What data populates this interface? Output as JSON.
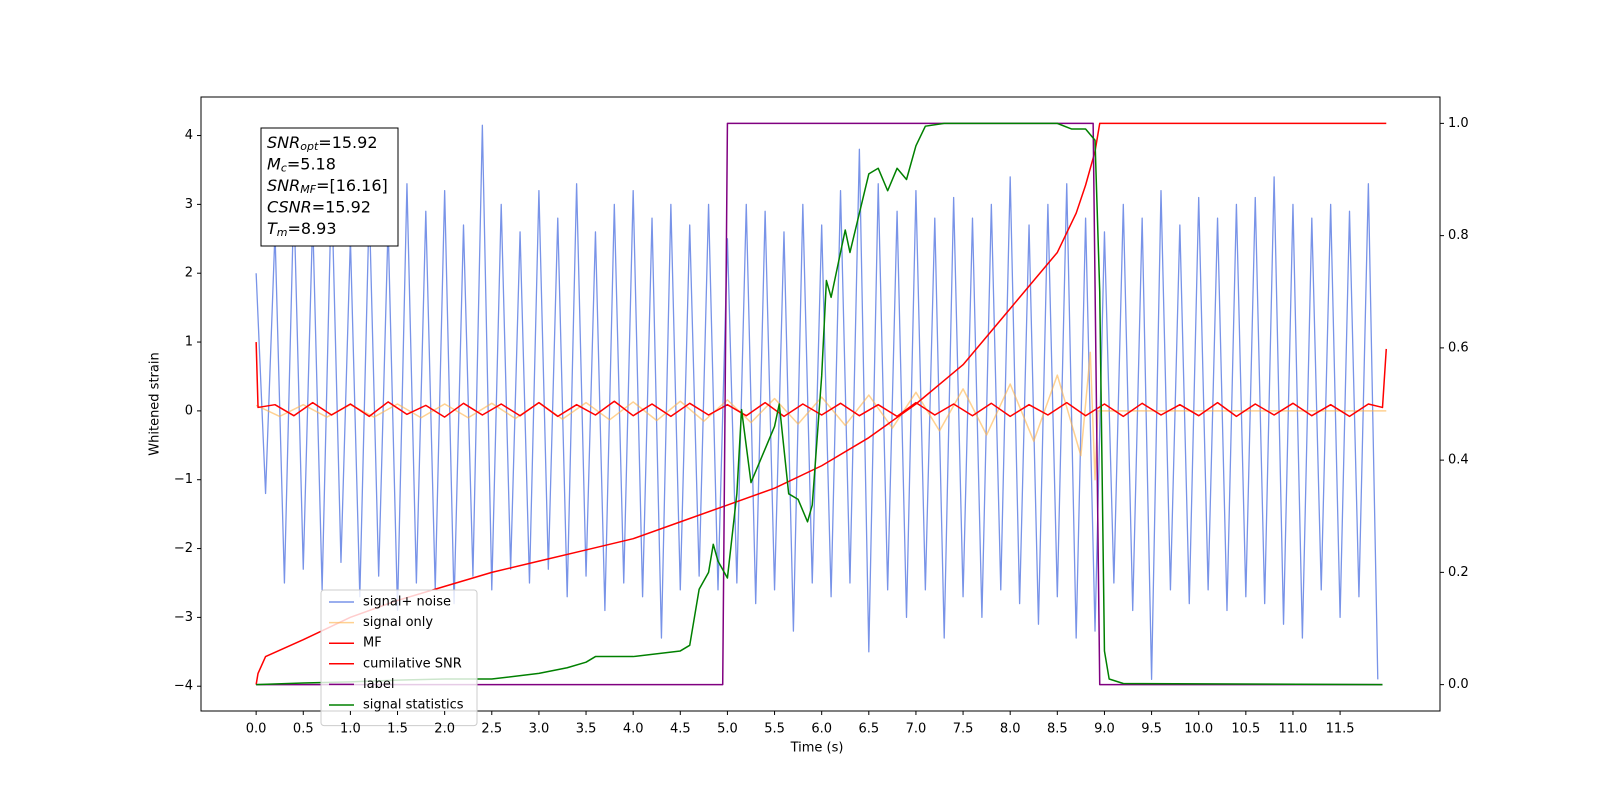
{
  "chart_data": {
    "type": "line",
    "xlabel": "Time (s)",
    "ylabel": "Whitened strain",
    "xlim": [
      -0.585,
      12.56
    ],
    "ylim": [
      -4.36,
      4.56
    ],
    "y2lim": [
      -0.047,
      1.047
    ],
    "xticks": [
      {
        "value": 0,
        "label": "0.0"
      },
      0.5,
      {
        "value": 1,
        "label": "1.0"
      },
      1.5,
      {
        "value": 2,
        "label": "2.0"
      },
      2.5,
      {
        "value": 3,
        "label": "3.0"
      },
      3.5,
      {
        "value": 4,
        "label": "4.0"
      },
      4.5,
      {
        "value": 5,
        "label": "5.0"
      },
      5.5,
      {
        "value": 6,
        "label": "6.0"
      },
      6.5,
      {
        "value": 7,
        "label": "7.0"
      },
      7.5,
      {
        "value": 8,
        "label": "8.0"
      },
      8.5,
      {
        "value": 9,
        "label": "9.0"
      },
      9.5,
      {
        "value": 10,
        "label": "10.0"
      },
      10.5,
      {
        "value": 11,
        "label": "11.0"
      },
      11.5
    ],
    "yticks": [
      {
        "value": -4,
        "label": "−4"
      },
      {
        "value": -3,
        "label": "−3"
      },
      {
        "value": -2,
        "label": "−2"
      },
      {
        "value": -1,
        "label": "−1"
      },
      0,
      1,
      2,
      3,
      4
    ],
    "y2ticks": [
      {
        "value": 0,
        "label": "0.0"
      },
      0.2,
      0.4,
      0.6,
      0.8,
      {
        "value": 1,
        "label": "1.0"
      }
    ],
    "grid": false,
    "legend": "lower left",
    "annotations": [
      {
        "text": "SNR",
        "sub": "opt",
        "value": "=15.92"
      },
      {
        "text": "M",
        "sub": "c",
        "value": "=5.18"
      },
      {
        "text": "SNR",
        "sub": "MF",
        "value": "=[16.16]"
      },
      {
        "text": "CSNR",
        "value": "=15.92"
      },
      {
        "text": "T",
        "sub": "m",
        "value": "=8.93"
      }
    ],
    "series": [
      {
        "name": "signal+ noise",
        "color": "#7893e8",
        "width": 1.3,
        "x": [
          0.0,
          0.1,
          0.2,
          0.3,
          0.4,
          0.5,
          0.6,
          0.7,
          0.8,
          0.9,
          1.0,
          1.1,
          1.2,
          1.3,
          1.4,
          1.5,
          1.6,
          1.7,
          1.8,
          1.9,
          2.0,
          2.1,
          2.2,
          2.3,
          2.4,
          2.5,
          2.6,
          2.7,
          2.8,
          2.9,
          3.0,
          3.1,
          3.2,
          3.3,
          3.4,
          3.5,
          3.6,
          3.7,
          3.8,
          3.9,
          4.0,
          4.1,
          4.2,
          4.3,
          4.4,
          4.5,
          4.6,
          4.7,
          4.8,
          4.9,
          5.0,
          5.1,
          5.2,
          5.3,
          5.4,
          5.5,
          5.6,
          5.7,
          5.8,
          5.9,
          6.0,
          6.1,
          6.2,
          6.3,
          6.4,
          6.5,
          6.6,
          6.7,
          6.8,
          6.9,
          7.0,
          7.1,
          7.2,
          7.3,
          7.4,
          7.5,
          7.6,
          7.7,
          7.8,
          7.9,
          8.0,
          8.1,
          8.2,
          8.3,
          8.4,
          8.5,
          8.6,
          8.7,
          8.8,
          8.9,
          9.0,
          9.1,
          9.2,
          9.3,
          9.4,
          9.5,
          9.6,
          9.7,
          9.8,
          9.9,
          10.0,
          10.1,
          10.2,
          10.3,
          10.4,
          10.5,
          10.6,
          10.7,
          10.8,
          10.9,
          11.0,
          11.1,
          11.2,
          11.3,
          11.4,
          11.5,
          11.6,
          11.7,
          11.8,
          11.9
        ],
        "values": [
          2.0,
          -1.2,
          2.6,
          -2.5,
          3.1,
          -2.3,
          2.8,
          -2.6,
          3.3,
          -2.2,
          2.5,
          -2.7,
          3.0,
          -2.4,
          2.7,
          -2.9,
          3.3,
          -2.5,
          2.9,
          -2.6,
          3.2,
          -2.8,
          2.7,
          -2.4,
          4.15,
          -2.6,
          3.0,
          -2.3,
          2.6,
          -2.5,
          3.2,
          -2.3,
          2.8,
          -2.7,
          3.3,
          -2.4,
          2.6,
          -2.9,
          3.0,
          -2.5,
          3.2,
          -2.7,
          2.8,
          -3.3,
          3.0,
          -2.6,
          2.7,
          -2.4,
          3.0,
          -2.6,
          2.5,
          -2.5,
          3.0,
          -2.8,
          2.9,
          -2.6,
          2.6,
          -3.2,
          3.0,
          -2.5,
          2.7,
          -2.7,
          3.2,
          -2.5,
          3.8,
          -3.5,
          3.3,
          -2.6,
          2.9,
          -3.0,
          3.2,
          -2.6,
          2.8,
          -3.3,
          3.1,
          -2.7,
          2.8,
          -3.0,
          3.0,
          -2.6,
          3.4,
          -2.8,
          2.7,
          -3.1,
          3.0,
          -2.7,
          3.3,
          -3.3,
          2.8,
          -3.2,
          2.6,
          -2.5,
          3.0,
          -2.9,
          2.8,
          -3.9,
          3.2,
          -2.6,
          2.7,
          -2.8,
          3.1,
          -2.6,
          2.8,
          -2.9,
          3.0,
          -2.7,
          3.1,
          -2.8,
          3.4,
          -3.1,
          3.0,
          -3.3,
          2.8,
          -2.6,
          3.0,
          -3.0,
          2.9,
          -2.7,
          3.3,
          -3.9
        ]
      },
      {
        "name": "signal only",
        "color": "#ffb347",
        "alpha": 0.6,
        "width": 1.5,
        "x": [
          0,
          0.25,
          0.5,
          0.75,
          1,
          1.25,
          1.5,
          1.75,
          2,
          2.25,
          2.5,
          2.75,
          3,
          3.25,
          3.5,
          3.75,
          4,
          4.25,
          4.5,
          4.75,
          5,
          5.25,
          5.5,
          5.75,
          6,
          6.25,
          6.5,
          6.75,
          7,
          7.25,
          7.5,
          7.75,
          8,
          8.25,
          8.5,
          8.75,
          8.85,
          8.9,
          8.93,
          11.99
        ],
        "values": [
          0.08,
          -0.08,
          0.09,
          -0.09,
          0.09,
          -0.09,
          0.1,
          -0.1,
          0.1,
          -0.1,
          0.11,
          -0.11,
          0.12,
          -0.12,
          0.12,
          -0.13,
          0.13,
          -0.14,
          0.14,
          -0.15,
          0.16,
          -0.17,
          0.18,
          -0.19,
          0.2,
          -0.21,
          0.23,
          -0.25,
          0.27,
          -0.29,
          0.32,
          -0.35,
          0.39,
          -0.44,
          0.52,
          -0.65,
          0.85,
          -1.0,
          0.0,
          0.0
        ]
      },
      {
        "name": "MF",
        "color": "#ff0000",
        "width": 1.5,
        "x": [
          0,
          0.02,
          0.2,
          0.4,
          0.6,
          0.8,
          1.0,
          1.2,
          1.4,
          1.6,
          1.8,
          2.0,
          2.2,
          2.4,
          2.6,
          2.8,
          3.0,
          3.2,
          3.4,
          3.6,
          3.8,
          4.0,
          4.2,
          4.4,
          4.6,
          4.8,
          5.0,
          5.2,
          5.4,
          5.6,
          5.8,
          6.0,
          6.2,
          6.4,
          6.6,
          6.8,
          7.0,
          7.2,
          7.4,
          7.6,
          7.8,
          8.0,
          8.2,
          8.4,
          8.6,
          8.8,
          9.0,
          9.2,
          9.4,
          9.6,
          9.8,
          10.0,
          10.2,
          10.4,
          10.6,
          10.8,
          11.0,
          11.2,
          11.4,
          11.6,
          11.8,
          11.95,
          11.99
        ],
        "values": [
          1.0,
          0.05,
          0.09,
          -0.07,
          0.12,
          -0.06,
          0.1,
          -0.08,
          0.13,
          -0.05,
          0.08,
          -0.09,
          0.11,
          -0.06,
          0.1,
          -0.07,
          0.12,
          -0.08,
          0.09,
          -0.06,
          0.14,
          -0.07,
          0.1,
          -0.08,
          0.11,
          -0.06,
          0.09,
          -0.07,
          0.12,
          -0.08,
          0.1,
          -0.06,
          0.11,
          -0.07,
          0.09,
          -0.08,
          0.12,
          -0.06,
          0.1,
          -0.07,
          0.11,
          -0.08,
          0.09,
          -0.06,
          0.12,
          -0.07,
          0.1,
          -0.08,
          0.11,
          -0.06,
          0.09,
          -0.07,
          0.12,
          -0.08,
          0.1,
          -0.06,
          0.11,
          -0.07,
          0.09,
          -0.08,
          0.1,
          0.05,
          0.9
        ]
      },
      {
        "name": "cumilative SNR",
        "color": "#ff0000",
        "width": 1.5,
        "axis": "y2",
        "x": [
          0,
          0.02,
          0.1,
          0.5,
          1,
          1.5,
          2,
          2.5,
          3,
          3.5,
          4,
          4.5,
          5,
          5.5,
          6,
          6.5,
          7,
          7.5,
          8,
          8.25,
          8.5,
          8.7,
          8.8,
          8.9,
          8.95,
          11.99
        ],
        "values": [
          0.0,
          0.02,
          0.05,
          0.08,
          0.12,
          0.15,
          0.175,
          0.2,
          0.22,
          0.24,
          0.26,
          0.29,
          0.32,
          0.35,
          0.39,
          0.44,
          0.5,
          0.57,
          0.67,
          0.72,
          0.77,
          0.84,
          0.89,
          0.95,
          1.0,
          1.0
        ]
      },
      {
        "name": "label",
        "color": "#800080",
        "width": 1.5,
        "axis": "y2",
        "x": [
          0,
          4.95,
          5.0,
          8.88,
          8.95,
          11.95
        ],
        "values": [
          0,
          0,
          1,
          1,
          0,
          0
        ]
      },
      {
        "name": "signal statistics",
        "color": "#008000",
        "width": 1.5,
        "axis": "y2",
        "x": [
          0,
          0.5,
          1,
          1.5,
          2,
          2.5,
          3,
          3.3,
          3.5,
          3.6,
          4,
          4.5,
          4.6,
          4.7,
          4.8,
          4.85,
          4.9,
          5.0,
          5.1,
          5.15,
          5.25,
          5.4,
          5.5,
          5.55,
          5.65,
          5.75,
          5.85,
          5.9,
          6.0,
          6.05,
          6.1,
          6.25,
          6.3,
          6.4,
          6.5,
          6.6,
          6.7,
          6.8,
          6.9,
          7.0,
          7.1,
          7.3,
          8.5,
          8.65,
          8.8,
          8.9,
          8.95,
          9.0,
          9.05,
          9.2,
          11.95
        ],
        "values": [
          0,
          0.003,
          0.005,
          0.008,
          0.01,
          0.01,
          0.02,
          0.03,
          0.04,
          0.05,
          0.05,
          0.06,
          0.07,
          0.17,
          0.2,
          0.25,
          0.22,
          0.19,
          0.34,
          0.49,
          0.36,
          0.42,
          0.46,
          0.5,
          0.34,
          0.33,
          0.29,
          0.32,
          0.55,
          0.72,
          0.69,
          0.81,
          0.77,
          0.84,
          0.91,
          0.92,
          0.88,
          0.92,
          0.9,
          0.96,
          0.995,
          1.0,
          1.0,
          0.99,
          0.99,
          0.97,
          0.7,
          0.06,
          0.01,
          0.002,
          0.0
        ]
      }
    ]
  }
}
